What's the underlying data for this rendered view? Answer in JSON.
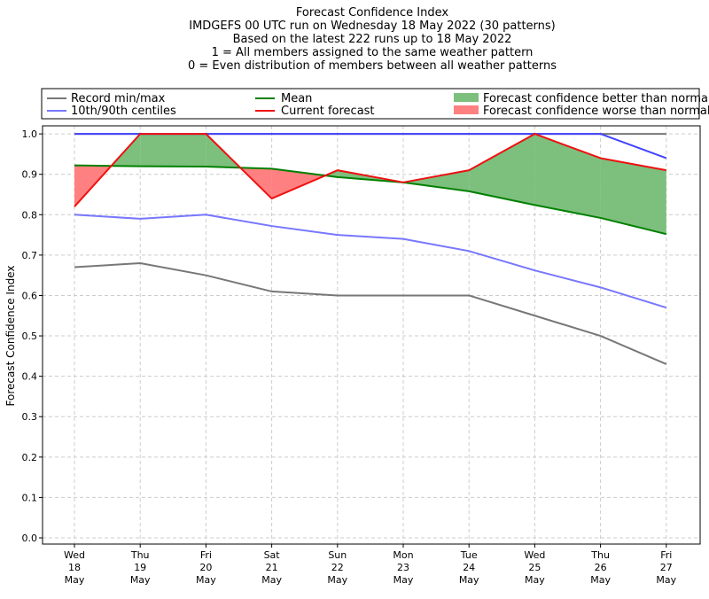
{
  "chart_data": {
    "type": "line",
    "title_lines": [
      "Forecast Confidence Index",
      "IMDGEFS 00 UTC run on Wednesday 18 May 2022 (30 patterns)",
      "Based on the latest 222 runs up to 18 May 2022",
      "1 = All members assigned to the same weather pattern",
      "0 = Even distribution of members between all weather patterns"
    ],
    "ylabel": "Forecast Confidence Index",
    "xlabel": "",
    "ylim": [
      0,
      1.0
    ],
    "yticks": [
      "0.0",
      "0.1",
      "0.2",
      "0.3",
      "0.4",
      "0.5",
      "0.6",
      "0.7",
      "0.8",
      "0.9",
      "1.0"
    ],
    "grid": true,
    "categories": [
      [
        "Wed",
        "18",
        "May"
      ],
      [
        "Thu",
        "19",
        "May"
      ],
      [
        "Fri",
        "20",
        "May"
      ],
      [
        "Sat",
        "21",
        "May"
      ],
      [
        "Sun",
        "22",
        "May"
      ],
      [
        "Mon",
        "23",
        "May"
      ],
      [
        "Tue",
        "24",
        "May"
      ],
      [
        "Wed",
        "25",
        "May"
      ],
      [
        "Thu",
        "26",
        "May"
      ],
      [
        "Fri",
        "27",
        "May"
      ]
    ],
    "series": [
      {
        "name": "Record min",
        "legend": "Record min/max",
        "color": "#777777",
        "values": [
          0.67,
          0.68,
          0.65,
          0.61,
          0.6,
          0.6,
          0.6,
          0.55,
          0.5,
          0.43
        ]
      },
      {
        "name": "Record max",
        "color": "#777777",
        "values": [
          1.0,
          1.0,
          1.0,
          1.0,
          1.0,
          1.0,
          1.0,
          1.0,
          1.0,
          1.0
        ]
      },
      {
        "name": "10th centile",
        "legend": "10th/90th centiles",
        "color": "#7777ff",
        "values": [
          0.8,
          0.79,
          0.8,
          0.772,
          0.75,
          0.74,
          0.71,
          0.662,
          0.62,
          0.57
        ]
      },
      {
        "name": "90th centile",
        "color": "#4444ff",
        "values": [
          1.0,
          1.0,
          1.0,
          1.0,
          1.0,
          1.0,
          1.0,
          1.0,
          1.0,
          0.94
        ]
      },
      {
        "name": "Mean",
        "legend": "Mean",
        "color": "#008000",
        "values": [
          0.922,
          0.92,
          0.919,
          0.914,
          0.893,
          0.88,
          0.858,
          0.824,
          0.792,
          0.752
        ]
      },
      {
        "name": "Current forecast",
        "legend": "Current forecast",
        "color": "#ee1111",
        "values": [
          0.82,
          1.0,
          1.0,
          0.84,
          0.91,
          0.88,
          0.91,
          1.0,
          0.94,
          0.91
        ]
      }
    ],
    "fills": [
      {
        "legend": "Forecast confidence better than normal",
        "color": "#7dbf7d"
      },
      {
        "legend": "Forecast confidence worse than normal",
        "color": "#ff8080"
      }
    ]
  }
}
